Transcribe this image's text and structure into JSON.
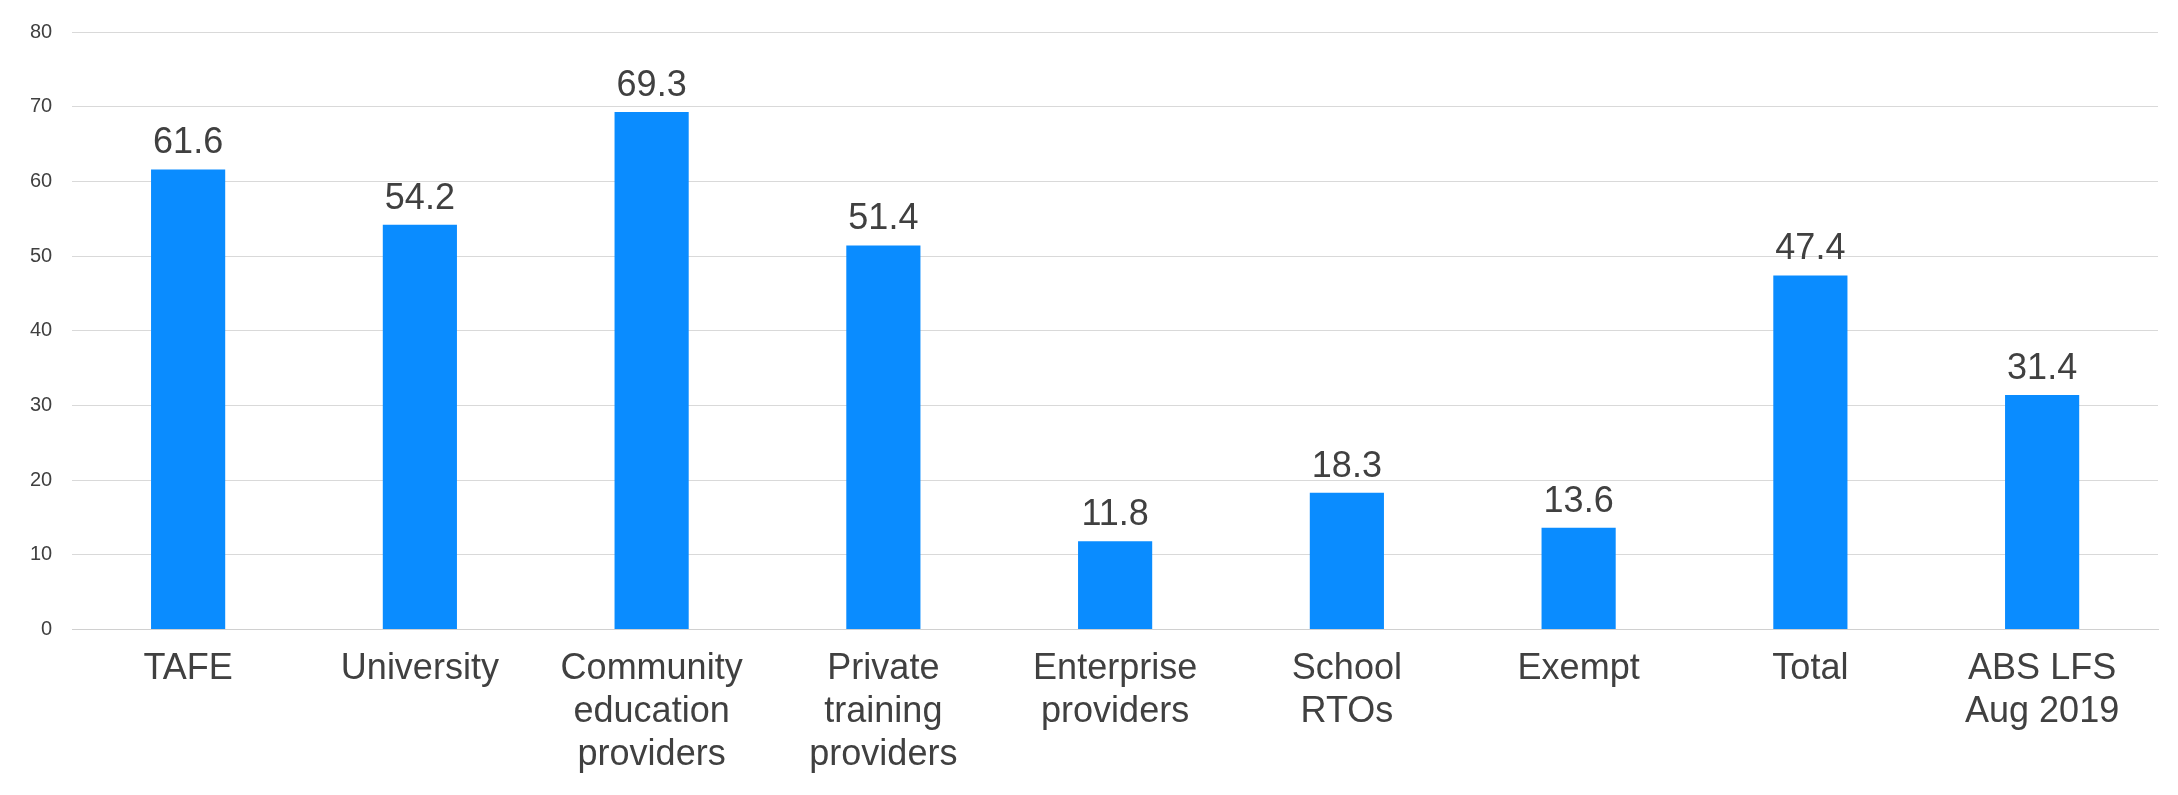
{
  "chart_data": {
    "type": "bar",
    "categories": [
      "TAFE",
      "University",
      "Community education providers",
      "Private training providers",
      "Enterprise providers",
      "School RTOs",
      "Exempt",
      "Total",
      "ABS LFS Aug 2019"
    ],
    "values": [
      61.6,
      54.2,
      69.3,
      51.4,
      11.8,
      18.3,
      13.6,
      47.4,
      31.4
    ],
    "color": "#0a8cff",
    "ylim": [
      0,
      80
    ],
    "yticks": [
      0,
      10,
      20,
      30,
      40,
      50,
      60,
      70,
      80
    ],
    "grid": "y",
    "data_labels": true,
    "legend": false
  }
}
